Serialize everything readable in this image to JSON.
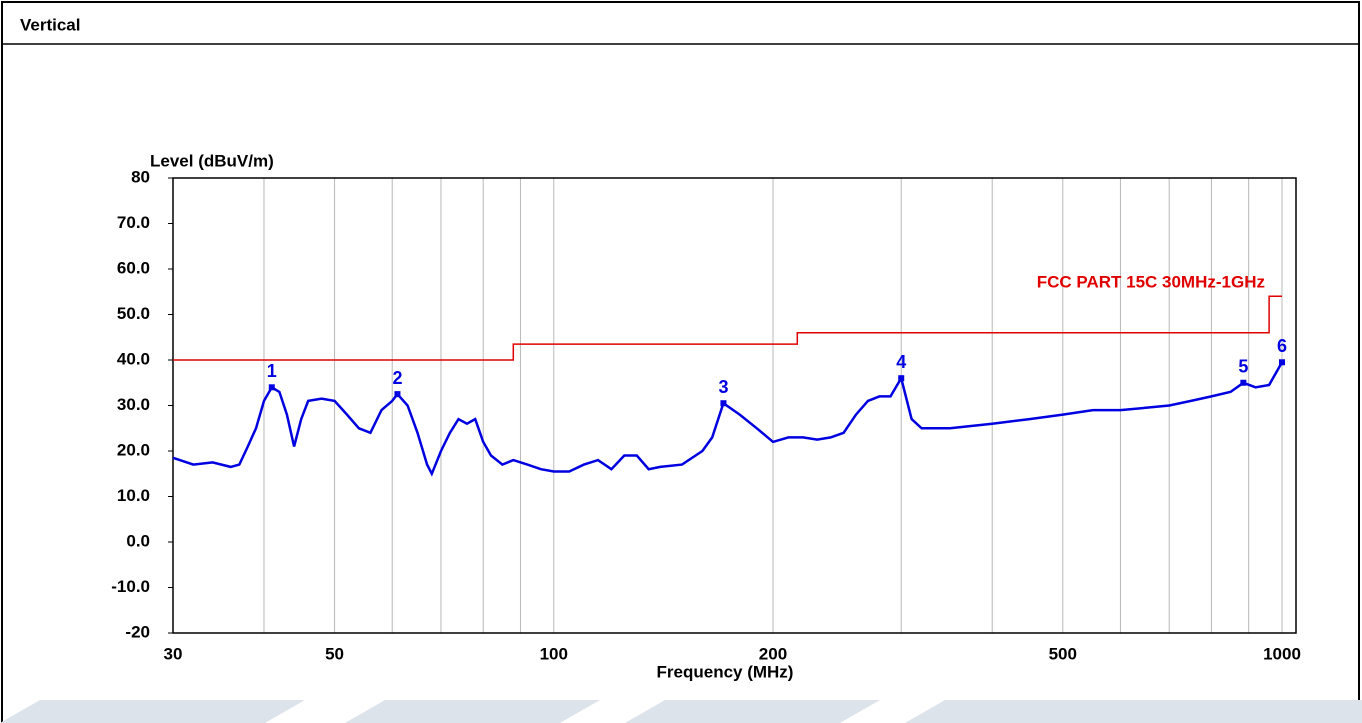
{
  "header": {
    "title": "Vertical"
  },
  "chart_data": {
    "type": "line",
    "ylabel": "Level (dBuV/m)",
    "xlabel": "Frequency (MHz)",
    "annotation": "FCC PART 15C 30MHz-1GHz",
    "xscale": "log",
    "xlim": [
      30,
      1000
    ],
    "xticks": [
      30,
      50,
      100,
      200,
      500,
      1000
    ],
    "xminor_ticks": [
      40,
      60,
      70,
      80,
      90,
      300,
      400,
      600,
      700,
      800,
      900
    ],
    "ylim": [
      -20,
      80
    ],
    "yticks": [
      -20,
      {
        "value": -10,
        "label": "-10.0"
      },
      {
        "value": 0,
        "label": "0.0"
      },
      {
        "value": 10,
        "label": "10.0"
      },
      {
        "value": 20,
        "label": "20.0"
      },
      {
        "value": 30,
        "label": "30.0"
      },
      {
        "value": 40,
        "label": "40.0"
      },
      {
        "value": 50,
        "label": "50.0"
      },
      {
        "value": 60,
        "label": "60.0"
      },
      {
        "value": 70,
        "label": "70.0"
      },
      80
    ],
    "grid": "x",
    "series": [
      {
        "name": "Level",
        "color": "#0000e0",
        "x": [
          30,
          32,
          34,
          36,
          37,
          38,
          39,
          40,
          41,
          42,
          43,
          44,
          45,
          46,
          48,
          50,
          52,
          54,
          56,
          58,
          60,
          61,
          63,
          65,
          67,
          68,
          70,
          72,
          74,
          76,
          78,
          80,
          82,
          85,
          88,
          92,
          96,
          100,
          105,
          110,
          115,
          120,
          125,
          130,
          135,
          140,
          150,
          160,
          165,
          171,
          180,
          190,
          200,
          210,
          220,
          230,
          240,
          250,
          260,
          270,
          280,
          290,
          300,
          310,
          320,
          350,
          400,
          450,
          500,
          550,
          600,
          650,
          700,
          750,
          800,
          850,
          885,
          920,
          960,
          1000
        ],
        "values": [
          18.5,
          17,
          17.5,
          16.5,
          17,
          21,
          25,
          31,
          34,
          33,
          28,
          21,
          27,
          31,
          31.5,
          31,
          28,
          25,
          24,
          29,
          31,
          32.5,
          30,
          24,
          17,
          15,
          20,
          24,
          27,
          26,
          27,
          22,
          19,
          17,
          18,
          17,
          16,
          15.5,
          15.5,
          17,
          18,
          16,
          19,
          19,
          16,
          16.5,
          17,
          20,
          23,
          30.5,
          28,
          25,
          22,
          23,
          23,
          22.5,
          23,
          24,
          28,
          31,
          32,
          32,
          36,
          27,
          25,
          25,
          26,
          27,
          28,
          29,
          29,
          29.5,
          30,
          31,
          32,
          33,
          35,
          34,
          34.5,
          39.5
        ]
      },
      {
        "name": "FCC PART 15C 30MHz-1GHz",
        "color": "#e00000",
        "x": [
          30,
          88,
          88,
          216,
          216,
          960,
          960,
          1000
        ],
        "values": [
          40,
          40,
          43.5,
          43.5,
          46,
          46,
          54,
          54
        ]
      }
    ],
    "markers": {
      "color": "#0000e0",
      "labels": [
        "1",
        "2",
        "3",
        "4",
        "5",
        "6"
      ],
      "x": [
        41,
        61,
        171,
        300,
        885,
        1000
      ],
      "values": [
        34,
        32.5,
        30.5,
        36,
        35,
        39.5
      ]
    }
  }
}
